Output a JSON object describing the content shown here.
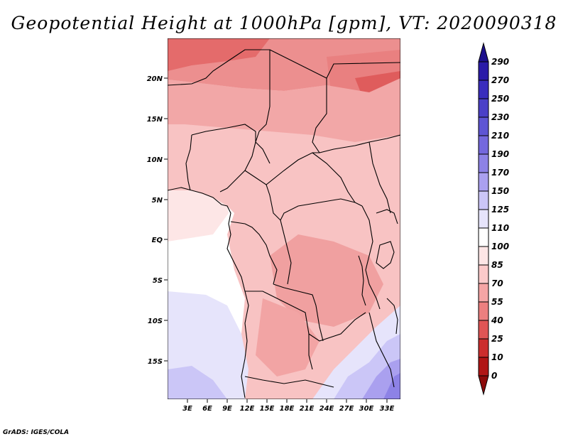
{
  "map": {
    "title": "Geopotential Height at 1000hPa [gpm], VT: 2020090318",
    "variable": "Geopotential Height",
    "level": "1000hPa",
    "units": "gpm",
    "valid_time": "2020090318",
    "region": "Central and southern Africa",
    "lat_labels": [
      "20N",
      "15N",
      "10N",
      "5N",
      "EQ",
      "5S",
      "10S",
      "15S"
    ],
    "lon_labels": [
      "3E",
      "6E",
      "9E",
      "12E",
      "15E",
      "18E",
      "21E",
      "24E",
      "27E",
      "30E",
      "33E"
    ],
    "credit": "GrADS: IGES/COLA"
  },
  "colorbar": {
    "levels": [
      "290",
      "270",
      "250",
      "230",
      "210",
      "190",
      "170",
      "150",
      "125",
      "110",
      "100",
      "85",
      "70",
      "55",
      "40",
      "25",
      "10",
      "0"
    ],
    "colors": [
      "#1c0f8c",
      "#2a1aa8",
      "#3a2dbd",
      "#4b40c8",
      "#5e55d4",
      "#7468dd",
      "#8d82e6",
      "#aaa0ef",
      "#cbc6f7",
      "#e6e4fb",
      "#ffffff",
      "#fde6e6",
      "#fbcaca",
      "#f5a5a5",
      "#ec7f7f",
      "#e05555",
      "#cc2e2e",
      "#b01515",
      "#8c0a0a"
    ]
  },
  "colors": {
    "ocean": "#ffffff",
    "land_base": "#f8c3c3",
    "boundary": "#000000"
  }
}
